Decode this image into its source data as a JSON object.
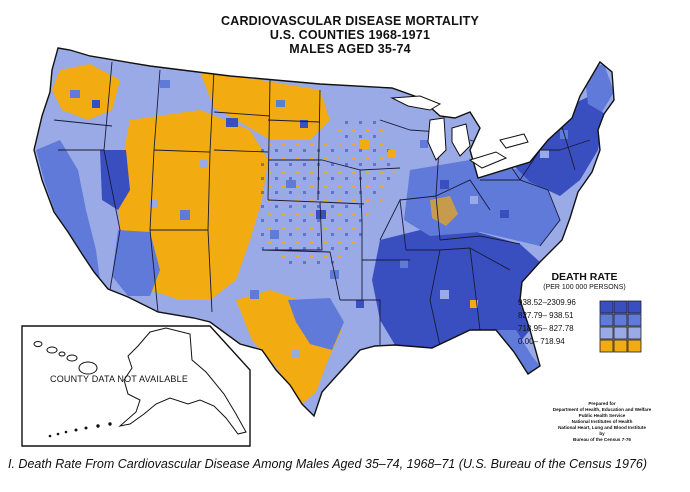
{
  "title": {
    "line1": "CARDIOVASCULAR DISEASE MORTALITY",
    "line2": "U.S. COUNTIES 1968-1971",
    "line3": "MALES AGED 35-74"
  },
  "legend": {
    "title": "DEATH RATE",
    "subtitle": "(PER 100 000 PERSONS)",
    "items": [
      {
        "label": "938.52–2309.96",
        "color": "#3a4fbf"
      },
      {
        "label": "827.79– 938.51",
        "color": "#5f7ad9"
      },
      {
        "label": "718.95– 827.78",
        "color": "#9aaae6"
      },
      {
        "label": "0.00– 718.94",
        "color": "#f2ab10"
      }
    ]
  },
  "inset": {
    "label": "COUNTY DATA NOT AVAILABLE"
  },
  "credit": {
    "lines": [
      "Prepared for",
      "Department of Health, Education and Welfare",
      "Public Health Service",
      "National Institutes of Health",
      "National Heart, Lung and Blood Institute",
      "by",
      "Bureau of the Census 7-76"
    ]
  },
  "caption": "I. Death Rate From Cardiovascular Disease Among Males Aged 35–74, 1968–71 (U.S. Bureau of the Census 1976)",
  "colors": {
    "dark_blue": "#3a4fbf",
    "medium_blue": "#5f7ad9",
    "light_blue": "#9aaae6",
    "orange": "#f2ab10",
    "border": "#1a1a3a"
  }
}
